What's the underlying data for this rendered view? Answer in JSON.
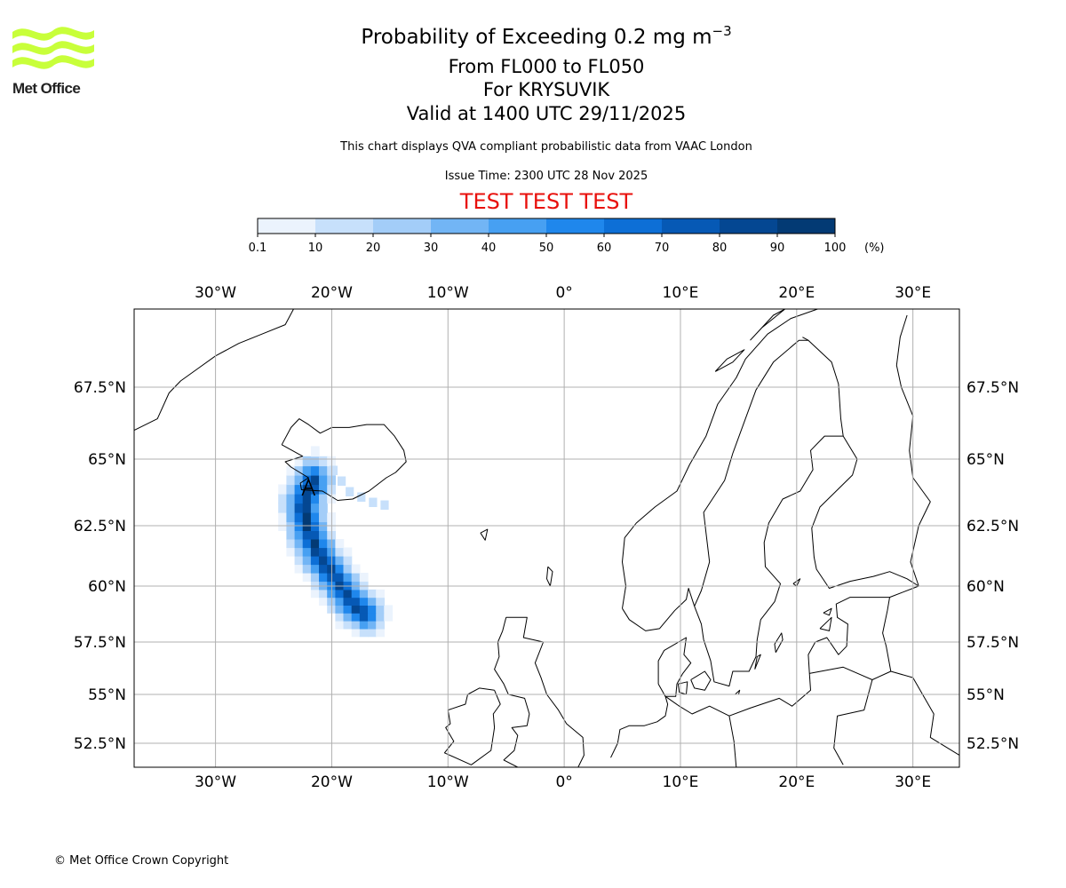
{
  "logo": {
    "name": "Met Office"
  },
  "header": {
    "title_main": "Probability of Exceeding 0.2 mg m",
    "title_unit_sup": "−3",
    "flight_levels": "From FL000 to FL050",
    "volcano": "For KRYSUVIK",
    "valid_time": "Valid at 1400 UTC 29/11/2025",
    "description": "This chart displays QVA compliant probabilistic data from VAAC London",
    "issue_time": "Issue Time: 2300 UTC 28 Nov 2025",
    "test_banner": "TEST TEST TEST"
  },
  "colorbar": {
    "ticks": [
      "0.1",
      "10",
      "20",
      "30",
      "40",
      "50",
      "60",
      "70",
      "80",
      "90",
      "100"
    ],
    "unit": "(%)",
    "colors": [
      "#ebf3fd",
      "#c7e0fb",
      "#a3cdf8",
      "#72b5f5",
      "#47a0f2",
      "#1f87ec",
      "#0d6fd6",
      "#0659b5",
      "#044792",
      "#033a74"
    ]
  },
  "chart_data": {
    "type": "map",
    "projection": "plate-carree-like",
    "lon_range": [
      -37,
      34
    ],
    "lat_range": [
      51.5,
      70
    ],
    "lon_ticks": [
      "30°W",
      "20°W",
      "10°W",
      "0°",
      "10°E",
      "20°E",
      "30°E"
    ],
    "lon_values": [
      -30,
      -20,
      -10,
      0,
      10,
      20,
      30
    ],
    "lat_ticks": [
      "52.5°N",
      "55°N",
      "57.5°N",
      "60°N",
      "62.5°N",
      "65°N",
      "67.5°N"
    ],
    "lat_values": [
      52.5,
      55,
      57.5,
      60,
      62.5,
      65,
      67.5
    ],
    "plume_axis": [
      {
        "lon": -22.0,
        "lat": 64.0,
        "peak_pct": 95
      },
      {
        "lon": -22.8,
        "lat": 63.2,
        "peak_pct": 95
      },
      {
        "lon": -22.4,
        "lat": 62.2,
        "peak_pct": 95
      },
      {
        "lon": -21.3,
        "lat": 61.0,
        "peak_pct": 92
      },
      {
        "lon": -19.7,
        "lat": 59.9,
        "peak_pct": 90
      },
      {
        "lon": -18.3,
        "lat": 58.9,
        "peak_pct": 90
      },
      {
        "lon": -17.5,
        "lat": 58.6,
        "peak_pct": 85
      }
    ],
    "source_marker": {
      "lon": -22.0,
      "lat": 63.9
    }
  },
  "footer": {
    "credit": "© Met Office Crown Copyright"
  }
}
